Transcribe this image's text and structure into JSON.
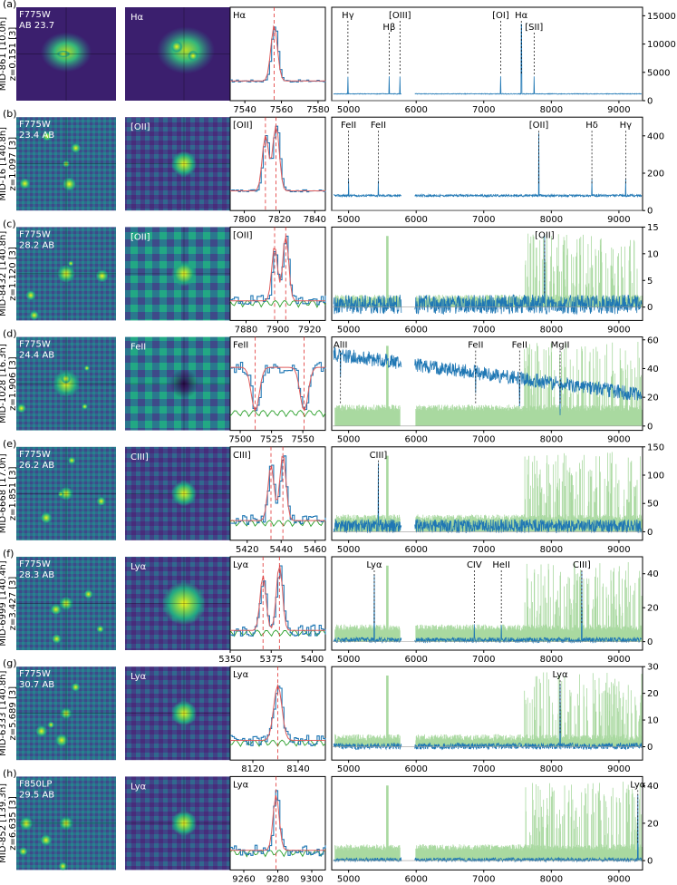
{
  "colors": {
    "thumb_bg": "#3b1f6e",
    "spectrum": "#1f77b4",
    "model": "#e05c5c",
    "noise": "#2ca02c",
    "noise_light": "#a9d9a0",
    "marker": "#e03030",
    "axis": "#000000"
  },
  "chart_data": [
    {
      "panel": "(a)",
      "object_id": "MID-861 [10.0h]",
      "redshift": "z=0.151 [3]",
      "band": "F775W",
      "mag": "AB 23.7",
      "line": "Hα",
      "zoom": {
        "xlim": [
          7532,
          7584
        ],
        "xticks": [
          7540,
          7560,
          7580
        ],
        "markers": [
          7556
        ],
        "ylim": [
          0,
          1
        ]
      },
      "full": {
        "xlim": [
          4750,
          9350
        ],
        "ylim": [
          0,
          16500
        ],
        "yticks": [
          0,
          5000,
          10000,
          15000
        ],
        "xticks": [
          5000,
          6000,
          7000,
          8000,
          9000
        ],
        "lines": [
          {
            "label": "Hγ",
            "x": 4990,
            "row": 0
          },
          {
            "label": "Hβ",
            "x": 5600,
            "row": 1
          },
          {
            "label": "[OIII]",
            "x": 5760,
            "row": 0
          },
          {
            "label": "[OI]",
            "x": 7250,
            "row": 0
          },
          {
            "label": "Hα",
            "x": 7556,
            "row": 0
          },
          {
            "label": "[SII]",
            "x": 7745,
            "row": 1
          }
        ]
      }
    },
    {
      "panel": "(b)",
      "object_id": "MID-16 [140.8h]",
      "redshift": "z=1.097 [3]",
      "band": "F775W",
      "mag": "23.4 AB",
      "line": "[OII]",
      "zoom": {
        "xlim": [
          7792,
          7846
        ],
        "xticks": [
          7800,
          7820,
          7840
        ],
        "markers": [
          7812,
          7818
        ],
        "ylim": [
          0,
          1
        ]
      },
      "full": {
        "xlim": [
          4750,
          9350
        ],
        "ylim": [
          0,
          500
        ],
        "yticks": [
          0,
          200,
          400
        ],
        "xticks": [
          5000,
          6000,
          7000,
          8000,
          9000
        ],
        "lines": [
          {
            "label": "FeII",
            "x": 5000,
            "row": 0
          },
          {
            "label": "FeII",
            "x": 5440,
            "row": 0
          },
          {
            "label": "[OII]",
            "x": 7815,
            "row": 0
          },
          {
            "label": "Hδ",
            "x": 8600,
            "row": 0
          },
          {
            "label": "Hγ",
            "x": 9100,
            "row": 0
          }
        ]
      }
    },
    {
      "panel": "(c)",
      "object_id": "MID-8432 [140.8h]",
      "redshift": "z=1.120 [3]",
      "band": "F775W",
      "mag": "28.2 AB",
      "line": "[OII]",
      "zoom": {
        "xlim": [
          7870,
          7930
        ],
        "xticks": [
          7880,
          7900,
          7920
        ],
        "markers": [
          7898,
          7905
        ],
        "ylim": [
          0,
          1
        ]
      },
      "full": {
        "xlim": [
          4750,
          9350
        ],
        "ylim": [
          -2.5,
          15
        ],
        "yticks": [
          0,
          5,
          10,
          15
        ],
        "xticks": [
          5000,
          6000,
          7000,
          8000,
          9000
        ],
        "lines": [
          {
            "label": "[OII]",
            "x": 7900,
            "row": 0
          }
        ]
      }
    },
    {
      "panel": "(d)",
      "object_id": "MID-1028 [16.3h]",
      "redshift": "z=1.906 [3]",
      "band": "F775W",
      "mag": "24.4 AB",
      "line": "FeII",
      "zoom": {
        "xlim": [
          7492,
          7568
        ],
        "xticks": [
          7500,
          7525,
          7550
        ],
        "markers": [
          7512,
          7551
        ],
        "ylim": [
          0,
          1
        ]
      },
      "full": {
        "xlim": [
          4750,
          9350
        ],
        "ylim": [
          -3,
          62
        ],
        "yticks": [
          0,
          20,
          40,
          60
        ],
        "xticks": [
          5000,
          6000,
          7000,
          8000,
          9000
        ],
        "lines": [
          {
            "label": "AlII",
            "x": 4880,
            "row": 0
          },
          {
            "label": "FeII",
            "x": 6880,
            "row": 0
          },
          {
            "label": "FeII",
            "x": 7530,
            "row": 0
          },
          {
            "label": "MgII",
            "x": 8130,
            "row": 0
          }
        ]
      }
    },
    {
      "panel": "(e)",
      "object_id": "MID-6668 [17.0h]",
      "redshift": "z=1.851 [3]",
      "band": "F775W",
      "mag": "26.2 AB",
      "line": "CIII]",
      "zoom": {
        "xlim": [
          5410,
          5466
        ],
        "xticks": [
          5420,
          5440,
          5460
        ],
        "markers": [
          5434,
          5441
        ],
        "ylim": [
          0,
          1
        ]
      },
      "full": {
        "xlim": [
          4750,
          9350
        ],
        "ylim": [
          -15,
          150
        ],
        "yticks": [
          0,
          50,
          100,
          150
        ],
        "xticks": [
          5000,
          6000,
          7000,
          8000,
          9000
        ],
        "lines": [
          {
            "label": "CIII]",
            "x": 5440,
            "row": 0
          }
        ]
      }
    },
    {
      "panel": "(f)",
      "object_id": "MID-6999 [140.4h]",
      "redshift": "z=3.427 [3]",
      "band": "F775W",
      "mag": "28.3 AB",
      "line": "Lyα",
      "zoom": {
        "xlim": [
          5350,
          5408
        ],
        "xticks": [
          5350,
          5375,
          5400
        ],
        "markers": [
          5370,
          5380
        ],
        "ylim": [
          0,
          1
        ]
      },
      "full": {
        "xlim": [
          4750,
          9350
        ],
        "ylim": [
          -5,
          50
        ],
        "yticks": [
          0,
          20,
          40
        ],
        "xticks": [
          5000,
          6000,
          7000,
          8000,
          9000
        ],
        "lines": [
          {
            "label": "Lyα",
            "x": 5380,
            "row": 0
          },
          {
            "label": "CIV",
            "x": 6860,
            "row": 0
          },
          {
            "label": "HeII",
            "x": 7260,
            "row": 0
          },
          {
            "label": "CIII]",
            "x": 8450,
            "row": 0
          }
        ]
      }
    },
    {
      "panel": "(g)",
      "object_id": "MID-6333 [140.8h]",
      "redshift": "z=5.689 [3]",
      "band": "F775W",
      "mag": "30.7 AB",
      "line": "Lyα",
      "zoom": {
        "xlim": [
          8110,
          8152
        ],
        "xticks": [
          8120,
          8140
        ],
        "markers": [
          8131
        ],
        "ylim": [
          0,
          1
        ]
      },
      "full": {
        "xlim": [
          4750,
          9350
        ],
        "ylim": [
          -5,
          30
        ],
        "yticks": [
          0,
          10,
          20,
          30
        ],
        "xticks": [
          5000,
          6000,
          7000,
          8000,
          9000
        ],
        "lines": [
          {
            "label": "Lyα",
            "x": 8130,
            "row": 0
          }
        ]
      }
    },
    {
      "panel": "(h)",
      "object_id": "MID-852 [139.3h]",
      "redshift": "z=6.635 [3]",
      "band": "F850LP",
      "mag": "29.5 AB",
      "line": "Lyα",
      "zoom": {
        "xlim": [
          9252,
          9308
        ],
        "xticks": [
          9260,
          9280,
          9300
        ],
        "markers": [
          9279
        ],
        "ylim": [
          0,
          1
        ]
      },
      "full": {
        "xlim": [
          4750,
          9350
        ],
        "ylim": [
          -5,
          45
        ],
        "yticks": [
          0,
          20,
          40
        ],
        "xticks": [
          5000,
          6000,
          7000,
          8000,
          9000
        ],
        "lines": [
          {
            "label": "Lyα",
            "x": 9280,
            "row": 0
          }
        ]
      }
    }
  ]
}
